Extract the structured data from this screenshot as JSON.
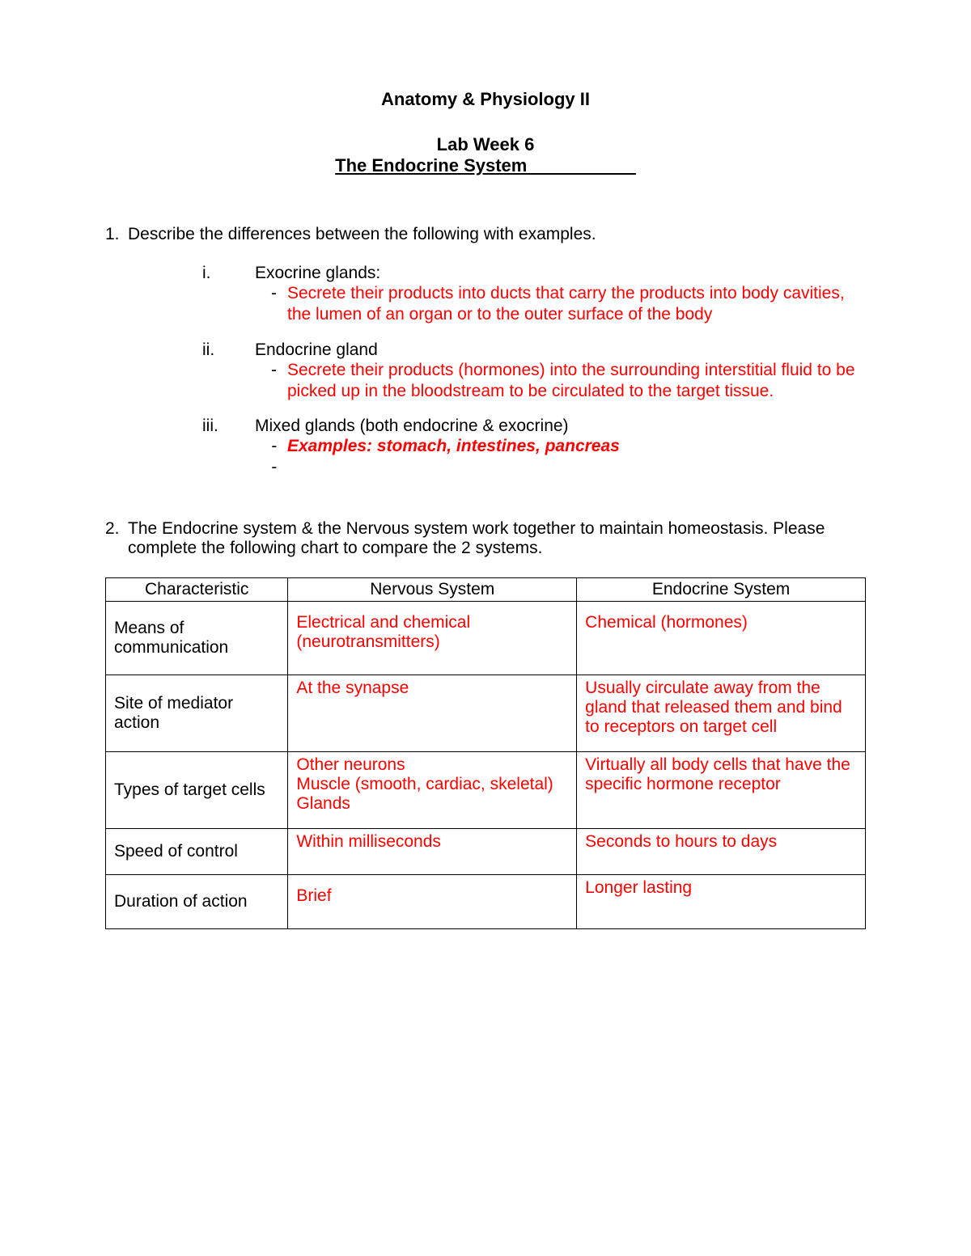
{
  "header": {
    "course": "Anatomy & Physiology II",
    "lab_week": "Lab Week 6",
    "lab_title": "The Endocrine System"
  },
  "q1": {
    "number": "1.",
    "prompt": "Describe the differences between the following with examples.",
    "items": [
      {
        "roman": "i.",
        "label": "Exocrine glands:",
        "answer": "Secrete their products into ducts that carry the products into body cavities, the lumen of an organ or to the outer surface of the body",
        "italic": false
      },
      {
        "roman": "ii.",
        "label": "Endocrine gland",
        "answer": "Secrete their products (hormones) into the surrounding interstitial fluid to be picked up in the bloodstream to be circulated to the target tissue.",
        "italic": false
      },
      {
        "roman": "iii.",
        "label": "Mixed glands (both endocrine & exocrine)",
        "answer": "Examples: stomach, intestines, pancreas",
        "italic": true
      }
    ]
  },
  "q2": {
    "number": "2.",
    "prompt": "The Endocrine system & the Nervous system work together to maintain homeostasis. Please complete the following chart to compare the 2 systems.",
    "table": {
      "headers": [
        "Characteristic",
        "Nervous System",
        "Endocrine System"
      ],
      "rows": [
        {
          "characteristic": "Means of communication",
          "nervous": "Electrical and chemical (neurotransmitters)",
          "endocrine": "Chemical (hormones)"
        },
        {
          "characteristic": "Site of mediator action",
          "nervous": "At the synapse",
          "endocrine": "Usually circulate away from the gland that released them and bind to receptors on target cell"
        },
        {
          "characteristic": "Types of target cells",
          "nervous": "Other neurons\nMuscle (smooth, cardiac, skeletal)\nGlands",
          "endocrine": "Virtually all body cells that have the specific hormone receptor"
        },
        {
          "characteristic": "Speed of control",
          "nervous": "Within milliseconds",
          "endocrine": "Seconds to hours to days"
        },
        {
          "characteristic": "Duration of action",
          "nervous": "Brief",
          "endocrine": "Longer lasting"
        }
      ]
    }
  },
  "colors": {
    "answer": "#ff0000",
    "text": "#000000",
    "background": "#ffffff"
  }
}
